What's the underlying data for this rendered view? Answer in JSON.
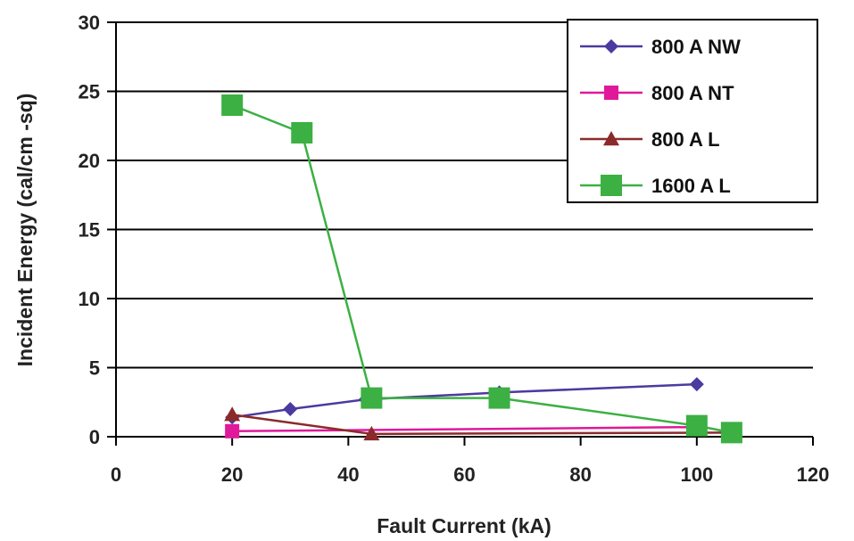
{
  "chart_data": {
    "type": "line",
    "title": "",
    "xlabel": "Fault Current (kA)",
    "ylabel": "Incident Energy (cal/cm -sq)",
    "xlim": [
      0,
      120
    ],
    "ylim": [
      0,
      30
    ],
    "xticks": [
      0,
      20,
      40,
      60,
      80,
      100,
      120
    ],
    "yticks": [
      0,
      5,
      10,
      15,
      20,
      25,
      30
    ],
    "grid": "horizontal",
    "legend_position": "top-right",
    "series": [
      {
        "name": "800 A NW",
        "color": "#4b3aa0",
        "marker": "diamond",
        "points": [
          [
            20,
            1.4
          ],
          [
            30,
            2.0
          ],
          [
            43,
            2.7
          ],
          [
            66,
            3.2
          ],
          [
            100,
            3.8
          ]
        ]
      },
      {
        "name": "800 A NT",
        "color": "#e0189a",
        "marker": "square",
        "points": [
          [
            20,
            0.4
          ],
          [
            100,
            0.7
          ]
        ]
      },
      {
        "name": "800 A L",
        "color": "#8b2a2a",
        "marker": "triangle",
        "points": [
          [
            20,
            1.6
          ],
          [
            44,
            0.2
          ],
          [
            106,
            0.3
          ]
        ]
      },
      {
        "name": "1600 A L",
        "color": "#3cb043",
        "marker": "big-square",
        "points": [
          [
            20,
            24
          ],
          [
            32,
            22
          ],
          [
            44,
            2.8
          ],
          [
            66,
            2.8
          ],
          [
            100,
            0.8
          ],
          [
            106,
            0.3
          ]
        ]
      }
    ]
  }
}
